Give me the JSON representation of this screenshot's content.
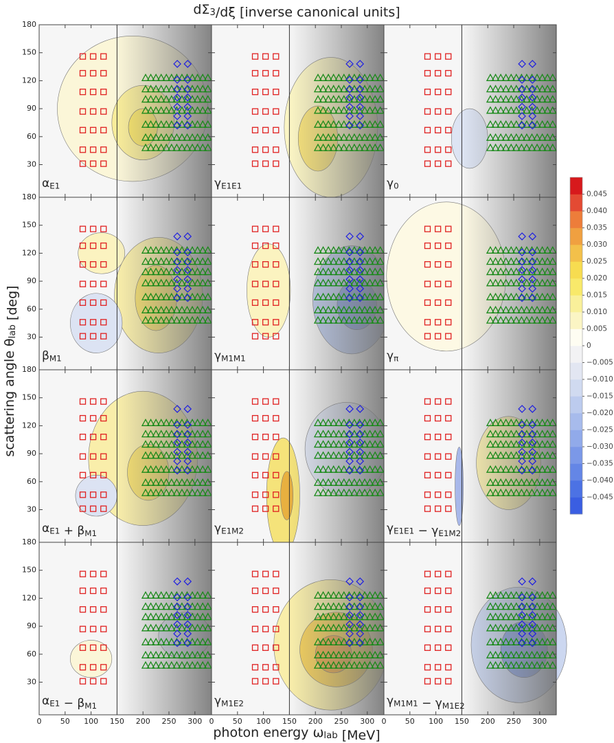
{
  "chart_data": {
    "type": "contour",
    "title": [
      [
        "dΣ",
        "3"
      ],
      [
        "/dξ [inverse canonical units]",
        ""
      ]
    ],
    "x_label": [
      [
        "photon energy ω",
        "lab"
      ],
      [
        " [MeV]",
        ""
      ]
    ],
    "y_label": [
      [
        "scattering angle θ",
        "lab"
      ],
      [
        " [deg]",
        ""
      ]
    ],
    "panels": [
      [
        [
          "α",
          "E1"
        ]
      ],
      [
        [
          "γ",
          "E1E1"
        ]
      ],
      [
        [
          "γ",
          "0"
        ]
      ],
      [
        [
          "β",
          "M1"
        ]
      ],
      [
        [
          "γ",
          "M1M1"
        ]
      ],
      [
        [
          "γ",
          "π"
        ]
      ],
      [
        [
          "α",
          "E1"
        ],
        [
          " + β",
          "M1"
        ]
      ],
      [
        [
          "γ",
          "E1M2"
        ]
      ],
      [
        [
          "γ",
          "E1E1"
        ],
        [
          " − γ",
          "E1M2"
        ]
      ],
      [
        [
          "α",
          "E1"
        ],
        [
          " − β",
          "M1"
        ]
      ],
      [
        [
          "γ",
          "M1E2"
        ]
      ],
      [
        [
          "γ",
          "M1M1"
        ],
        [
          " − γ",
          "M1E2"
        ]
      ]
    ],
    "xlim": [
      0,
      332
    ],
    "ylim": [
      -5,
      180
    ],
    "xticks": [
      0,
      50,
      100,
      150,
      200,
      250,
      300
    ],
    "yticks": [
      30,
      60,
      90,
      120,
      150,
      180
    ],
    "threshold": 150,
    "markers": {
      "squares": {
        "color": "#e02020",
        "energies": [
          84,
          104,
          124
        ],
        "angles": [
          146,
          128,
          108,
          87,
          67,
          46,
          31
        ]
      },
      "diamonds": {
        "color": "#2020e0",
        "energies": [
          266,
          286
        ],
        "angles": [
          138,
          121,
          111,
          102,
          92,
          82,
          72
        ]
      },
      "triangles": {
        "color": "#1a8a1a",
        "energies": [
          205,
          215,
          225,
          235,
          245,
          255,
          265,
          275,
          285,
          295,
          305,
          315,
          325
        ],
        "angles": [
          123,
          111,
          100,
          88,
          73,
          59,
          48
        ]
      }
    },
    "colorbar": {
      "clim": [
        -0.05,
        0.05
      ],
      "colors": [
        "#3a5ee2",
        "#4c72e4",
        "#6486e6",
        "#7b98e8",
        "#91aaea",
        "#a7bbec",
        "#bccbee",
        "#d0daf0",
        "#e2e6f2",
        "#f2f2f4",
        "#fefdf2",
        "#fbf5c4",
        "#f9f09a",
        "#f8e96a",
        "#f7dc50",
        "#f3c04a",
        "#f0a040",
        "#ed7d3a",
        "#e34a33",
        "#d7191c"
      ],
      "ticks": [
        {
          "value": 0.045,
          "label": "0.045"
        },
        {
          "value": 0.04,
          "label": "0.040"
        },
        {
          "value": 0.035,
          "label": "0.035"
        },
        {
          "value": 0.03,
          "label": "0.030"
        },
        {
          "value": 0.025,
          "label": "0.025"
        },
        {
          "value": 0.02,
          "label": "0.020"
        },
        {
          "value": 0.015,
          "label": "0.015"
        },
        {
          "value": 0.01,
          "label": "0.010"
        },
        {
          "value": 0.005,
          "label": "0.005"
        },
        0,
        {
          "value": -0.005,
          "label": "−0.005"
        },
        {
          "value": -0.01,
          "label": "−0.010"
        },
        {
          "value": -0.015,
          "label": "−0.015"
        },
        {
          "value": -0.02,
          "label": "−0.020"
        },
        {
          "value": -0.025,
          "label": "−0.025"
        },
        {
          "value": -0.03,
          "label": "−0.030"
        },
        {
          "value": -0.035,
          "label": "−0.035"
        },
        {
          "value": -0.04,
          "label": "−0.040"
        },
        {
          "value": -0.045,
          "label": "−0.045"
        }
      ]
    }
  }
}
